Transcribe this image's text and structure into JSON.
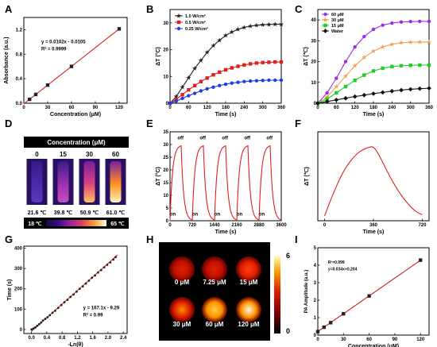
{
  "chart_data": [
    {
      "panel": "A",
      "type": "line",
      "title": "",
      "xlabel": "Concentration (μM)",
      "ylabel": "Absorbance (a.u.)",
      "xlim": [
        0,
        130
      ],
      "ylim": [
        0,
        1.4
      ],
      "xticks": [
        0,
        30,
        60,
        90,
        120
      ],
      "yticks": [
        0.0,
        0.4,
        0.8,
        1.2
      ],
      "ytick_labels": [
        "0.0",
        "0.4",
        "0.8",
        "1.2"
      ],
      "series": [
        {
          "x": [
            7.25,
            15,
            30,
            60,
            120
          ],
          "y": [
            0.064,
            0.143,
            0.296,
            0.601,
            1.214
          ],
          "color": "#d42020"
        }
      ],
      "annotations": [
        "y = 0.0102x - 0.0105",
        "R² = 0.9999"
      ]
    },
    {
      "panel": "B",
      "type": "line",
      "title": "",
      "xlabel": "Time (s)",
      "ylabel": "ΔT (°C)",
      "xlim": [
        0,
        360
      ],
      "ylim": [
        0,
        35
      ],
      "xticks": [
        0,
        60,
        120,
        180,
        240,
        300,
        360
      ],
      "yticks": [
        0,
        10,
        20,
        30
      ],
      "legend": "top-left",
      "series": [
        {
          "name": "1.0 W/cm²",
          "color": "#222222",
          "marker": "star",
          "x": [
            0,
            20,
            40,
            60,
            80,
            100,
            120,
            140,
            160,
            180,
            200,
            220,
            240,
            260,
            280,
            300,
            320,
            340,
            360
          ],
          "y": [
            0,
            2.5,
            6,
            9.5,
            13,
            16,
            19,
            21.5,
            23.5,
            25.3,
            26.6,
            27.6,
            28.3,
            28.8,
            29.1,
            29.3,
            29.4,
            29.5,
            29.5
          ]
        },
        {
          "name": "0.5 W/cm²",
          "color": "#e02020",
          "marker": "square",
          "x": [
            0,
            20,
            40,
            60,
            80,
            100,
            120,
            140,
            160,
            180,
            200,
            220,
            240,
            260,
            280,
            300,
            320,
            340,
            360
          ],
          "y": [
            0,
            1.5,
            3.2,
            5,
            6.6,
            8.1,
            9.4,
            10.6,
            11.6,
            12.5,
            13.2,
            13.8,
            14.3,
            14.7,
            15,
            15.2,
            15.3,
            15.4,
            15.4
          ]
        },
        {
          "name": "0.25 W/cm²",
          "color": "#1f3fe0",
          "marker": "circle",
          "x": [
            0,
            20,
            40,
            60,
            80,
            100,
            120,
            140,
            160,
            180,
            200,
            220,
            240,
            260,
            280,
            300,
            320,
            340,
            360
          ],
          "y": [
            0,
            0.8,
            1.8,
            2.8,
            3.7,
            4.6,
            5.4,
            6,
            6.6,
            7.1,
            7.5,
            7.8,
            8.1,
            8.3,
            8.4,
            8.5,
            8.6,
            8.6,
            8.6
          ]
        }
      ]
    },
    {
      "panel": "C",
      "type": "line",
      "title": "",
      "xlabel": "Time (s)",
      "ylabel": "ΔT (℃)",
      "xlim": [
        0,
        360
      ],
      "ylim": [
        0,
        45
      ],
      "xticks": [
        0,
        60,
        120,
        180,
        240,
        300,
        360
      ],
      "yticks": [
        0,
        10,
        20,
        30,
        40
      ],
      "legend": "top-left",
      "series": [
        {
          "name": "60 μM",
          "color": "#9b30e0",
          "marker": "circle",
          "x": [
            0,
            30,
            60,
            90,
            120,
            150,
            180,
            210,
            240,
            270,
            300,
            330,
            360
          ],
          "y": [
            0,
            5,
            12,
            20,
            27,
            32,
            35.5,
            37.5,
            38.5,
            39,
            39.2,
            39.3,
            39.3
          ]
        },
        {
          "name": "30 μM",
          "color": "#f0a050",
          "marker": "star",
          "x": [
            0,
            30,
            60,
            90,
            120,
            150,
            180,
            210,
            240,
            270,
            300,
            330,
            360
          ],
          "y": [
            0,
            3,
            8,
            13,
            18,
            22,
            25,
            27,
            28.3,
            29,
            29.3,
            29.4,
            29.4
          ]
        },
        {
          "name": "15 μM",
          "color": "#22cc22",
          "marker": "square",
          "x": [
            0,
            30,
            60,
            90,
            120,
            150,
            180,
            210,
            240,
            270,
            300,
            330,
            360
          ],
          "y": [
            0,
            2,
            5,
            8,
            11,
            13.5,
            15.5,
            16.8,
            17.6,
            18,
            18.2,
            18.3,
            18.3
          ]
        },
        {
          "name": "Water",
          "color": "#111111",
          "marker": "diamond",
          "x": [
            0,
            30,
            60,
            90,
            120,
            150,
            180,
            210,
            240,
            270,
            300,
            330,
            360
          ],
          "y": [
            0,
            0.8,
            1.6,
            2.4,
            3.2,
            3.9,
            4.6,
            5.2,
            5.8,
            6.3,
            6.7,
            7,
            7.2
          ]
        }
      ]
    },
    {
      "panel": "D",
      "type": "heatmap",
      "header": "Concentration (μM)",
      "samples": [
        {
          "label": "0",
          "temp": "21.6 ℃",
          "intensity": 0.05
        },
        {
          "label": "15",
          "temp": "39.8 ℃",
          "intensity": 0.4
        },
        {
          "label": "30",
          "temp": "50.9 ℃",
          "intensity": 0.7
        },
        {
          "label": "60",
          "temp": "61.0 ℃",
          "intensity": 0.95
        }
      ],
      "colorbar": {
        "min_label": "18 ℃",
        "max_label": "65 ℃"
      }
    },
    {
      "panel": "E",
      "type": "line",
      "title": "",
      "xlabel": "Time (s)",
      "ylabel": "ΔT (°C)",
      "xlim": [
        0,
        3600
      ],
      "ylim": [
        0,
        35
      ],
      "xticks": [
        0,
        720,
        1440,
        2160,
        2880,
        3600
      ],
      "yticks": [
        0,
        5,
        10,
        15,
        20,
        25,
        30,
        35
      ],
      "cycles": 5,
      "cycle_length_s": 720,
      "peak": 29.5,
      "on_labels": [
        "on",
        "on",
        "on",
        "on",
        "on"
      ],
      "off_labels": [
        "off",
        "off",
        "off",
        "off",
        "off"
      ],
      "series": [
        {
          "color": "#e02020"
        }
      ]
    },
    {
      "panel": "F",
      "type": "line",
      "title": "",
      "xlabel": "Time (s)",
      "ylabel": "ΔT (℃)",
      "xlim": [
        -50,
        770
      ],
      "ylim": [
        -2,
        35
      ],
      "xticks": [
        0,
        360,
        720
      ],
      "series": [
        {
          "color": "#e02020",
          "x": [
            0,
            40,
            80,
            120,
            160,
            200,
            240,
            280,
            320,
            360,
            400,
            440,
            480,
            520,
            560,
            600,
            640,
            680,
            720
          ],
          "y": [
            0,
            6,
            11.5,
            16.5,
            20.5,
            23.5,
            26,
            27.5,
            28.5,
            29,
            25.5,
            21,
            16.5,
            12.5,
            9,
            6,
            3.5,
            1.5,
            0.5
          ]
        }
      ]
    },
    {
      "panel": "G",
      "type": "scatter",
      "title": "",
      "xlabel": "-Ln(θ)",
      "ylabel": "Time (s)",
      "xlim": [
        -0.2,
        2.5
      ],
      "ylim": [
        -20,
        410
      ],
      "xticks": [
        0.0,
        0.4,
        0.8,
        1.2,
        1.6,
        2.0,
        2.4
      ],
      "xtick_labels": [
        "0.0",
        "0.4",
        "0.8",
        "1.2",
        "1.6",
        "2.0",
        "2.4"
      ],
      "fit": {
        "slope": 167.1,
        "intercept": -9.29
      },
      "annotations": [
        "y = 167.1x - 9.29",
        "R² = 0.99"
      ],
      "series": [
        {
          "color": "#222222",
          "x": [
            0.0,
            0.05,
            0.1,
            0.15,
            0.2,
            0.25,
            0.3,
            0.36,
            0.42,
            0.48,
            0.55,
            0.62,
            0.7,
            0.78,
            0.86,
            0.94,
            1.02,
            1.1,
            1.18,
            1.26,
            1.34,
            1.42,
            1.5,
            1.58,
            1.66,
            1.74,
            1.82,
            1.9,
            1.98,
            2.06,
            2.14,
            2.2
          ],
          "y": [
            0,
            5,
            10,
            18,
            26,
            34,
            44,
            52,
            60,
            70,
            82,
            92,
            106,
            120,
            134,
            146,
            160,
            172,
            186,
            200,
            212,
            226,
            240,
            254,
            266,
            280,
            292,
            306,
            318,
            330,
            344,
            356
          ]
        }
      ]
    },
    {
      "panel": "H",
      "type": "heatmap",
      "wells": [
        {
          "label": "0 μM",
          "intensity": 0.25
        },
        {
          "label": "7.25 μM",
          "intensity": 0.35
        },
        {
          "label": "15 μM",
          "intensity": 0.45
        },
        {
          "label": "30 μM",
          "intensity": 0.7
        },
        {
          "label": "60 μM",
          "intensity": 0.85
        },
        {
          "label": "120 μM",
          "intensity": 1.0
        }
      ],
      "colorbar": {
        "min_label": "0",
        "max_label": "6"
      }
    },
    {
      "panel": "I",
      "type": "line",
      "title": "",
      "xlabel": "Concentration (μM)",
      "ylabel": "PA Amplitude (a.u.)",
      "xlim": [
        0,
        130
      ],
      "ylim": [
        0,
        5
      ],
      "xticks": [
        0,
        30,
        60,
        90,
        120
      ],
      "yticks": [
        0,
        1,
        2,
        3,
        4,
        5
      ],
      "annotations": [
        "R²=0.999",
        "y=0.034x+0.204"
      ],
      "series": [
        {
          "color": "#d42020",
          "x": [
            0,
            7.25,
            15,
            30,
            60,
            120
          ],
          "y": [
            0.2,
            0.45,
            0.71,
            1.22,
            2.24,
            4.29
          ]
        }
      ]
    }
  ],
  "panel_labels": [
    "A",
    "B",
    "C",
    "D",
    "E",
    "F",
    "G",
    "H",
    "I"
  ]
}
